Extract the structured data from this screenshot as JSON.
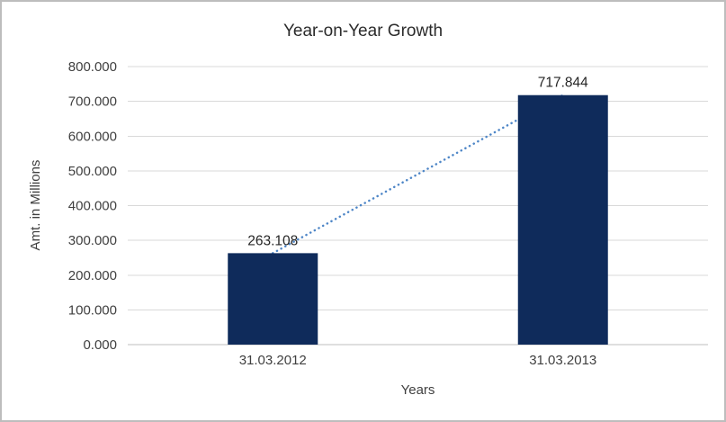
{
  "chart_data": {
    "type": "bar",
    "title": "Year-on-Year Growth",
    "xlabel": "Years",
    "ylabel": "Amt. in Millions",
    "categories": [
      "31.03.2012",
      "31.03.2013"
    ],
    "values": [
      263.108,
      717.844
    ],
    "data_labels": [
      "263.108",
      "717.844"
    ],
    "ylim": [
      0,
      800
    ],
    "ytick_step": 100,
    "ytick_labels": [
      "0.000",
      "100.000",
      "200.000",
      "300.000",
      "400.000",
      "500.000",
      "600.000",
      "700.000",
      "800.000"
    ],
    "grid": true,
    "legend_position": "none",
    "bar_color": "#0F2B5B",
    "trendline": {
      "style": "dotted",
      "color": "#4E86C7"
    },
    "gridline_color": "#D9D9D9",
    "axis_line_color": "#BFBFBF",
    "tick_label_color": "#404040",
    "data_label_color": "#262626"
  }
}
